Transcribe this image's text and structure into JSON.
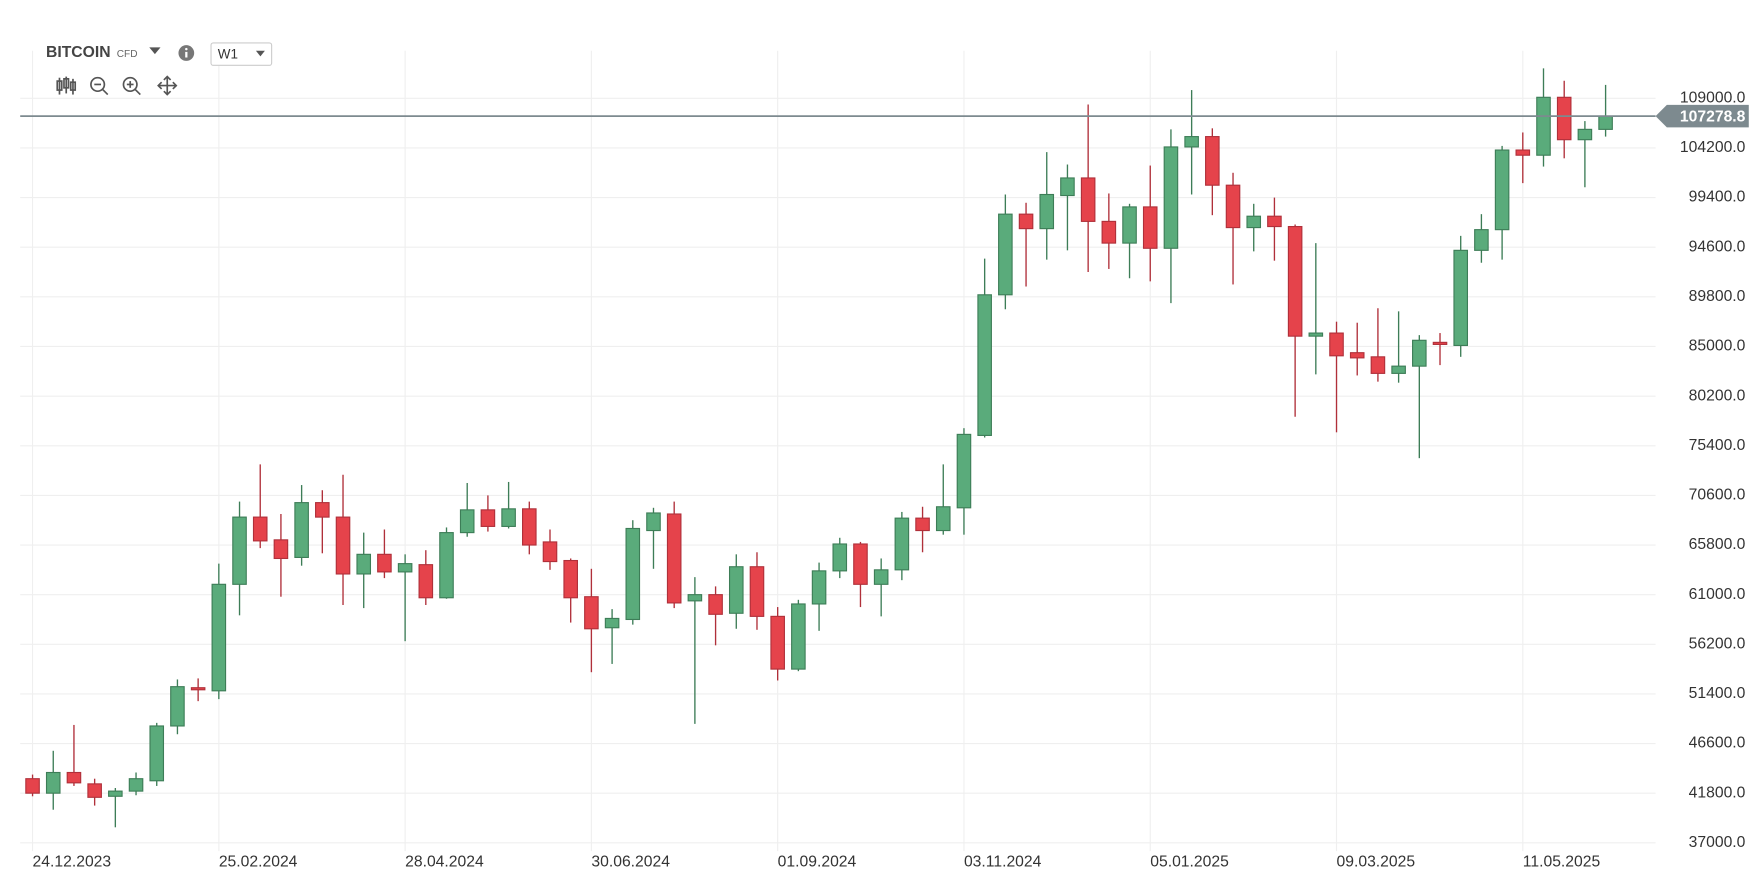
{
  "chart_data": {
    "type": "candlestick",
    "title": "BITCOIN",
    "subtitle": "CFD",
    "timeframe": "W1",
    "up_color": "#5aab7b",
    "down_color": "#e5434b",
    "grid": true,
    "categories": [
      "24.12.2023",
      null,
      null,
      null,
      null,
      null,
      null,
      null,
      null,
      "25.02.2024",
      null,
      null,
      null,
      null,
      null,
      null,
      null,
      null,
      "28.04.2024",
      null,
      null,
      null,
      null,
      null,
      null,
      null,
      null,
      "30.06.2024",
      null,
      null,
      null,
      null,
      null,
      null,
      null,
      null,
      "01.09.2024",
      null,
      null,
      null,
      null,
      null,
      null,
      null,
      null,
      "03.11.2024",
      null,
      null,
      null,
      null,
      null,
      null,
      null,
      null,
      "05.01.2025",
      null,
      null,
      null,
      null,
      null,
      null,
      null,
      null,
      "09.03.2025",
      null,
      null,
      null,
      null,
      null,
      null,
      null,
      null,
      "11.05.2025",
      null,
      null,
      null,
      null
    ],
    "open": [
      43200,
      41800,
      43800,
      42700,
      41500,
      42000,
      43000,
      48300,
      52000,
      51700,
      62000,
      68500,
      66300,
      64600,
      69900,
      68500,
      63000,
      64900,
      63200,
      63900,
      60700,
      67000,
      69200,
      67600,
      69300,
      66100,
      64300,
      60800,
      57800,
      58600,
      67200,
      68800,
      60400,
      61000,
      59200,
      63700,
      58900,
      53800,
      60100,
      63300,
      65900,
      62000,
      63400,
      68400,
      67200,
      69400,
      76400,
      90000,
      97800,
      96400,
      99600,
      101300,
      97100,
      95000,
      98500,
      94500,
      104300,
      105300,
      100600,
      96500,
      97600,
      96600,
      86000,
      86300,
      84400,
      84000,
      82400,
      83100,
      85400,
      85100,
      94300,
      96300,
      104000,
      103500,
      109100,
      105000,
      106000
    ],
    "high": [
      43600,
      45900,
      48400,
      43200,
      42300,
      43800,
      48600,
      52800,
      52900,
      64000,
      70000,
      73600,
      68800,
      71600,
      71100,
      72600,
      67000,
      67300,
      64900,
      65300,
      67500,
      71800,
      70600,
      71900,
      70000,
      67300,
      64500,
      63500,
      59600,
      68200,
      69400,
      70000,
      62700,
      61800,
      64900,
      65100,
      59800,
      60500,
      64100,
      66500,
      66100,
      64500,
      69000,
      69500,
      73600,
      77100,
      93500,
      99700,
      98900,
      103800,
      102600,
      108400,
      99800,
      98800,
      102500,
      106000,
      109800,
      106100,
      101800,
      98800,
      99400,
      96800,
      95000,
      87400,
      87300,
      88700,
      88400,
      86100,
      86300,
      95700,
      97800,
      104400,
      105700,
      111900,
      110700,
      106800,
      110300
    ],
    "low": [
      41500,
      40200,
      42500,
      40600,
      38500,
      41600,
      42500,
      47500,
      50700,
      50900,
      59000,
      65500,
      60800,
      63800,
      65000,
      60000,
      59700,
      62600,
      56500,
      60000,
      60600,
      66600,
      67100,
      67400,
      64900,
      63400,
      58300,
      53500,
      54300,
      58100,
      63500,
      59700,
      48500,
      56100,
      57700,
      57600,
      52700,
      53600,
      57500,
      62600,
      59800,
      58900,
      62400,
      65100,
      66800,
      66800,
      76200,
      88600,
      90800,
      93400,
      94300,
      92200,
      92500,
      91600,
      91300,
      89200,
      99700,
      97700,
      91000,
      94200,
      93300,
      78200,
      82300,
      76700,
      82200,
      81600,
      81500,
      74200,
      83200,
      84000,
      93100,
      93400,
      100800,
      102400,
      103200,
      100400,
      105300
    ],
    "close": [
      41800,
      43800,
      42800,
      41400,
      42000,
      43200,
      48300,
      52100,
      51800,
      62000,
      68500,
      66200,
      64500,
      69900,
      68500,
      63000,
      64900,
      63200,
      64000,
      60700,
      67000,
      69200,
      67600,
      69300,
      65800,
      64200,
      60700,
      57700,
      58700,
      67400,
      68900,
      60200,
      61000,
      59100,
      63700,
      58900,
      53800,
      60100,
      63300,
      65900,
      62000,
      63400,
      68400,
      67200,
      69500,
      76500,
      90000,
      97800,
      96400,
      99700,
      101300,
      97100,
      95000,
      98500,
      94500,
      104300,
      105300,
      100600,
      96500,
      97600,
      96600,
      86000,
      86300,
      84100,
      83900,
      82400,
      83100,
      85600,
      85200,
      94300,
      96300,
      104000,
      103500,
      109100,
      105000,
      106000,
      107278.8
    ],
    "current_price": 107278.8,
    "ylim": [
      36200,
      113600
    ],
    "yticks": [
      {
        "value": 37000,
        "label": "37000.0"
      },
      {
        "value": 41800,
        "label": "41800.0"
      },
      {
        "value": 46600,
        "label": "46600.0"
      },
      {
        "value": 51400,
        "label": "51400.0"
      },
      {
        "value": 56200,
        "label": "56200.0"
      },
      {
        "value": 61000,
        "label": "61000.0"
      },
      {
        "value": 65800,
        "label": "65800.0"
      },
      {
        "value": 70600,
        "label": "70600.0"
      },
      {
        "value": 75400,
        "label": "75400.0"
      },
      {
        "value": 80200,
        "label": "80200.0"
      },
      {
        "value": 85000,
        "label": "85000.0"
      },
      {
        "value": 89800,
        "label": "89800.0"
      },
      {
        "value": 94600,
        "label": "94600.0"
      },
      {
        "value": 99400,
        "label": "99400.0"
      },
      {
        "value": 104200,
        "label": "104200.0"
      },
      {
        "value": 109000,
        "label": "109000.0"
      }
    ]
  }
}
